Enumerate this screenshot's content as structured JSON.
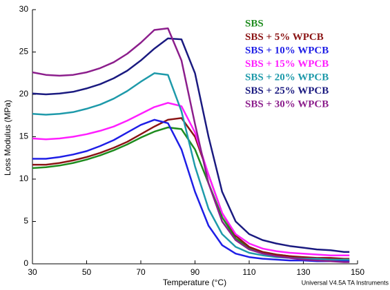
{
  "chart_data": {
    "type": "line",
    "x_label": "Temperature (°C)",
    "y_label": "Loss Modulus (MPa)",
    "footnote": "Universal V4.5A TA Instruments",
    "x": [
      30,
      35,
      40,
      45,
      50,
      55,
      60,
      65,
      70,
      75,
      80,
      85,
      90,
      95,
      100,
      105,
      110,
      115,
      120,
      125,
      130,
      135,
      140,
      145,
      147
    ],
    "xlim": [
      30,
      150
    ],
    "xticks": [
      30,
      50,
      70,
      90,
      110,
      130,
      150
    ],
    "ylim": [
      0,
      30
    ],
    "yticks": [
      0,
      5,
      10,
      15,
      20,
      25,
      30
    ],
    "series": [
      {
        "name": "SBS",
        "color": "#1e8c1e",
        "values": [
          11.3,
          11.4,
          11.6,
          11.9,
          12.3,
          12.8,
          13.4,
          14.1,
          14.9,
          15.6,
          16.1,
          15.9,
          13.5,
          9.5,
          5.5,
          3.0,
          1.9,
          1.4,
          1.1,
          0.9,
          0.7,
          0.6,
          0.5,
          0.4,
          0.4
        ]
      },
      {
        "name": "SBS + 5% WPCB",
        "color": "#8b1414",
        "values": [
          11.7,
          11.7,
          11.9,
          12.2,
          12.6,
          13.1,
          13.7,
          14.4,
          15.3,
          16.2,
          17.0,
          17.2,
          15.0,
          10.5,
          6.0,
          3.3,
          2.0,
          1.4,
          1.1,
          0.9,
          0.8,
          0.7,
          0.7,
          0.6,
          0.6
        ]
      },
      {
        "name": "SBS + 10% WPCB",
        "color": "#1e1ee6",
        "values": [
          12.4,
          12.4,
          12.6,
          12.9,
          13.3,
          13.9,
          14.6,
          15.5,
          16.4,
          17.0,
          16.6,
          13.5,
          8.5,
          4.5,
          2.2,
          1.2,
          0.8,
          0.6,
          0.5,
          0.4,
          0.4,
          0.3,
          0.3,
          0.3,
          0.3
        ]
      },
      {
        "name": "SBS + 15% WPCB",
        "color": "#ff1eff",
        "values": [
          14.8,
          14.7,
          14.8,
          15.0,
          15.3,
          15.7,
          16.2,
          16.9,
          17.7,
          18.5,
          19.0,
          18.6,
          15.5,
          10.5,
          6.0,
          3.5,
          2.4,
          1.8,
          1.5,
          1.3,
          1.2,
          1.1,
          1.0,
          1.0,
          1.0
        ]
      },
      {
        "name": "SBS + 20% WPCB",
        "color": "#1e9aaa",
        "values": [
          17.7,
          17.6,
          17.7,
          17.9,
          18.3,
          18.8,
          19.5,
          20.4,
          21.5,
          22.5,
          22.3,
          18.0,
          11.5,
          6.5,
          3.5,
          2.0,
          1.3,
          1.0,
          0.8,
          0.7,
          0.6,
          0.6,
          0.5,
          0.5,
          0.5
        ]
      },
      {
        "name": "SBS + 25% WPCB",
        "color": "#1a1a80",
        "values": [
          20.1,
          20.0,
          20.1,
          20.3,
          20.7,
          21.2,
          21.9,
          22.8,
          24.0,
          25.4,
          26.6,
          26.5,
          22.5,
          15.0,
          8.5,
          5.0,
          3.5,
          2.8,
          2.4,
          2.1,
          1.9,
          1.7,
          1.6,
          1.4,
          1.4
        ]
      },
      {
        "name": "SBS + 30% WPCB",
        "color": "#8c1e8c",
        "values": [
          22.6,
          22.3,
          22.2,
          22.3,
          22.6,
          23.1,
          23.8,
          24.8,
          26.1,
          27.6,
          27.8,
          24.0,
          16.5,
          9.5,
          5.0,
          2.8,
          1.7,
          1.2,
          0.9,
          0.7,
          0.5,
          0.4,
          0.3,
          0.2,
          0.2
        ]
      }
    ]
  }
}
